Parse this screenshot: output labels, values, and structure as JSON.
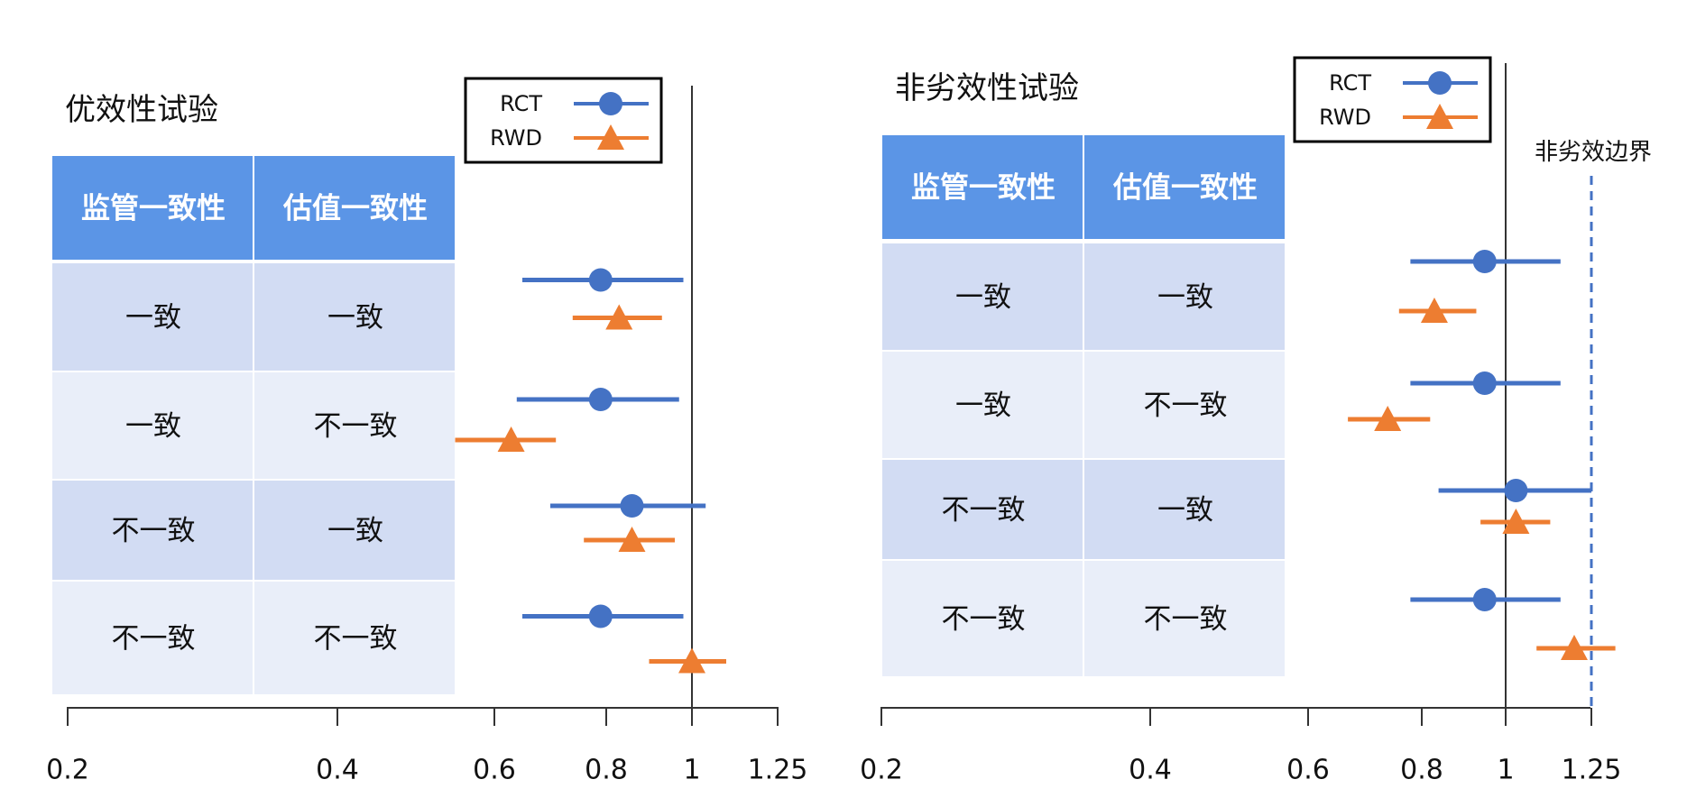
{
  "chart_data": [
    {
      "type": "forest",
      "title": "优效性试验",
      "columns": [
        "监管一致性",
        "估值一致性"
      ],
      "rows": [
        {
          "cells": [
            "一致",
            "一致"
          ]
        },
        {
          "cells": [
            "一致",
            "不一致"
          ]
        },
        {
          "cells": [
            "不一致",
            "一致"
          ]
        },
        {
          "cells": [
            "不一致",
            "不一致"
          ]
        }
      ],
      "series": [
        {
          "name": "RCT",
          "marker": "circle",
          "color": "#4472C4",
          "estimates": [
            0.79,
            0.79,
            0.86,
            0.79
          ],
          "lower": [
            0.65,
            0.64,
            0.7,
            0.65
          ],
          "upper": [
            0.98,
            0.97,
            1.04,
            0.98
          ]
        },
        {
          "name": "RWD",
          "marker": "triangle",
          "color": "#ED7D31",
          "estimates": [
            0.83,
            0.63,
            0.86,
            1.0
          ],
          "lower": [
            0.74,
            0.55,
            0.76,
            0.9
          ],
          "upper": [
            0.93,
            0.71,
            0.96,
            1.1
          ]
        }
      ],
      "x_ticks": [
        "0.2",
        "0.4",
        "0.6",
        "0.8",
        "1",
        "1.25"
      ],
      "reference_line": 1,
      "legend": "top-right"
    },
    {
      "type": "forest",
      "title": "非劣效性试验",
      "columns": [
        "监管一致性",
        "估值一致性"
      ],
      "rows": [
        {
          "cells": [
            "一致",
            "一致"
          ]
        },
        {
          "cells": [
            "一致",
            "不一致"
          ]
        },
        {
          "cells": [
            "不一致",
            "一致"
          ]
        },
        {
          "cells": [
            "不一致",
            "不一致"
          ]
        }
      ],
      "series": [
        {
          "name": "RCT",
          "marker": "circle",
          "color": "#4472C4",
          "estimates": [
            0.95,
            0.95,
            1.03,
            0.95
          ],
          "lower": [
            0.78,
            0.78,
            0.84,
            0.78
          ],
          "upper": [
            1.16,
            1.16,
            1.25,
            1.16
          ]
        },
        {
          "name": "RWD",
          "marker": "triangle",
          "color": "#ED7D31",
          "estimates": [
            0.83,
            0.74,
            1.03,
            1.2
          ],
          "lower": [
            0.76,
            0.67,
            0.94,
            1.09
          ],
          "upper": [
            0.93,
            0.82,
            1.13,
            1.32
          ]
        }
      ],
      "x_ticks": [
        "0.2",
        "0.4",
        "0.6",
        "0.8",
        "1",
        "1.25"
      ],
      "reference_line": 1,
      "margin_line": 1.25,
      "margin_label": "非劣效边界",
      "legend": "top-right"
    }
  ]
}
